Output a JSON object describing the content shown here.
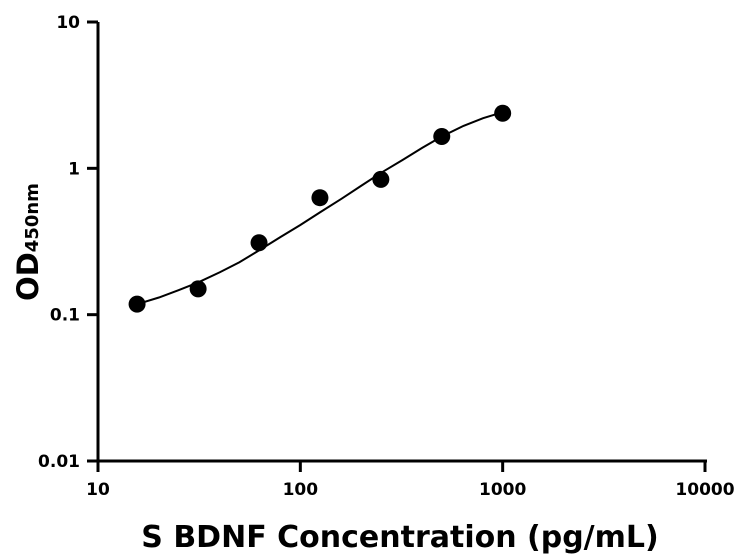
{
  "chart_data": {
    "type": "scatter",
    "title": "",
    "xlabel": "S BDNF Concentration (pg/mL)",
    "ylabel_main": "OD",
    "ylabel_sub": "450nm",
    "x_scale": "log",
    "y_scale": "log",
    "xlim": [
      10,
      10000
    ],
    "ylim": [
      0.01,
      10
    ],
    "x_ticks": [
      "10",
      "100",
      "1000",
      "10000"
    ],
    "y_ticks": [
      "0.01",
      "0.1",
      "1",
      "10"
    ],
    "grid": false,
    "series": [
      {
        "x": [
          15.6,
          31.25,
          62.5,
          125,
          250,
          500,
          1000
        ],
        "y": [
          0.118,
          0.15,
          0.31,
          0.63,
          0.84,
          1.65,
          2.38
        ]
      }
    ],
    "fit_curve": {
      "x": [
        15.6,
        20,
        25,
        31.25,
        40,
        50,
        62.5,
        80,
        100,
        125,
        160,
        200,
        250,
        320,
        400,
        500,
        640,
        800,
        1000
      ],
      "y": [
        0.118,
        0.131,
        0.147,
        0.166,
        0.195,
        0.228,
        0.275,
        0.34,
        0.41,
        0.5,
        0.62,
        0.76,
        0.93,
        1.14,
        1.38,
        1.65,
        1.95,
        2.2,
        2.42
      ]
    },
    "colors": {
      "marker": "#000000",
      "line": "#000000",
      "axis": "#000000"
    }
  }
}
